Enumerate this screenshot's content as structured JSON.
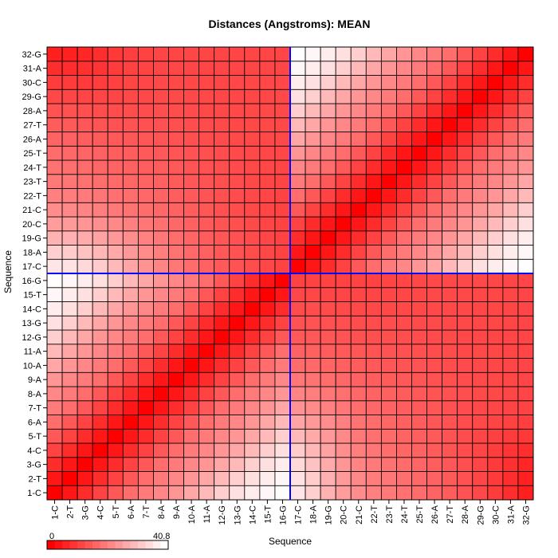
{
  "chart_data": {
    "type": "heatmap",
    "title": "Distances (Angstroms):  MEAN",
    "xlabel": "Sequence",
    "ylabel": "Sequence",
    "categories": [
      "1-C",
      "2-T",
      "3-G",
      "4-C",
      "5-T",
      "6-A",
      "7-T",
      "8-A",
      "9-A",
      "10-A",
      "11-A",
      "12-G",
      "13-G",
      "14-C",
      "15-T",
      "16-G",
      "17-C",
      "18-A",
      "19-G",
      "20-C",
      "21-C",
      "22-T",
      "23-T",
      "24-T",
      "25-T",
      "26-A",
      "27-T",
      "28-A",
      "29-G",
      "30-C",
      "31-A",
      "32-G"
    ],
    "value_range": [
      0,
      40.8
    ],
    "colorbar": {
      "min_label": "0",
      "max_label": "40.8",
      "low_color": "#ff0000",
      "high_color": "#ffffff"
    },
    "crosshair": {
      "x_after": "16-G",
      "y_after": "16-G",
      "color": "#0000ff"
    },
    "grid": true,
    "values": [
      [
        0.0,
        3.5,
        7.0,
        10.5,
        14.0,
        17.5,
        19.7,
        21.6,
        23.8,
        26.5,
        29.6,
        33.0,
        35.8,
        37.9,
        39.5,
        40.6,
        36.6,
        33.0,
        28.5,
        25.0,
        22.5,
        20.5,
        19.4,
        18.3,
        17.2,
        16.0,
        14.7,
        13.3,
        11.6,
        9.6,
        7.4,
        4.9
      ],
      [
        3.5,
        0.0,
        3.5,
        7.0,
        10.5,
        14.0,
        17.5,
        19.7,
        21.6,
        23.8,
        26.5,
        29.6,
        33.0,
        35.8,
        37.9,
        39.5,
        36.3,
        32.4,
        28.2,
        24.6,
        21.9,
        20.0,
        18.8,
        17.7,
        16.7,
        15.6,
        14.4,
        12.9,
        11.2,
        9.3,
        7.2,
        5.2
      ],
      [
        7.0,
        3.5,
        0.0,
        3.5,
        7.0,
        10.5,
        14.0,
        17.5,
        19.7,
        21.6,
        23.8,
        26.5,
        29.6,
        33.0,
        35.8,
        37.9,
        34.7,
        31.0,
        27.4,
        23.9,
        21.2,
        19.5,
        18.2,
        17.2,
        16.2,
        15.1,
        13.9,
        12.6,
        11.1,
        9.3,
        7.6,
        6.1
      ],
      [
        10.5,
        7.0,
        3.5,
        0.0,
        3.5,
        7.0,
        10.5,
        14.0,
        17.5,
        19.7,
        21.6,
        23.8,
        26.5,
        29.6,
        33.0,
        35.8,
        32.4,
        29.2,
        25.9,
        22.8,
        20.3,
        18.8,
        17.5,
        16.5,
        15.6,
        14.6,
        13.5,
        12.3,
        11.0,
        9.7,
        8.5,
        7.4
      ],
      [
        14.0,
        10.5,
        7.0,
        3.5,
        0.0,
        3.5,
        7.0,
        10.5,
        14.0,
        17.5,
        19.7,
        21.6,
        23.8,
        26.5,
        29.6,
        33.0,
        29.6,
        27.0,
        24.3,
        21.7,
        19.3,
        18.1,
        16.9,
        15.9,
        15.1,
        14.2,
        13.2,
        12.2,
        11.2,
        10.3,
        9.6,
        8.9
      ],
      [
        17.5,
        14.0,
        10.5,
        7.0,
        3.5,
        0.0,
        3.5,
        7.0,
        10.5,
        14.0,
        17.5,
        19.7,
        21.6,
        23.8,
        26.5,
        29.6,
        26.4,
        24.5,
        22.5,
        20.4,
        18.4,
        17.4,
        16.4,
        15.5,
        14.7,
        13.9,
        13.1,
        12.3,
        11.5,
        10.9,
        10.4,
        10.0
      ],
      [
        19.7,
        17.5,
        14.0,
        10.5,
        7.0,
        3.5,
        0.0,
        3.5,
        7.0,
        10.5,
        14.0,
        17.5,
        19.7,
        21.6,
        23.8,
        26.5,
        23.5,
        22.2,
        20.7,
        19.1,
        17.5,
        16.7,
        15.9,
        15.1,
        14.4,
        13.7,
        13.0,
        12.3,
        11.7,
        11.2,
        10.8,
        10.5
      ],
      [
        21.6,
        19.7,
        17.5,
        14.0,
        10.5,
        7.0,
        3.5,
        0.0,
        3.5,
        7.0,
        10.5,
        14.0,
        17.5,
        19.7,
        21.6,
        23.8,
        21.2,
        20.2,
        19.1,
        17.9,
        16.7,
        16.0,
        15.3,
        14.7,
        14.1,
        13.5,
        12.9,
        12.4,
        11.9,
        11.5,
        11.2,
        11.0
      ],
      [
        23.8,
        21.6,
        19.7,
        17.5,
        14.0,
        10.5,
        7.0,
        3.5,
        0.0,
        3.5,
        7.0,
        10.5,
        14.0,
        17.5,
        19.7,
        21.6,
        19.1,
        18.4,
        17.5,
        16.6,
        15.7,
        15.1,
        14.6,
        14.1,
        13.6,
        13.1,
        12.6,
        12.2,
        11.8,
        11.5,
        11.3,
        11.1
      ],
      [
        26.5,
        23.8,
        21.6,
        19.7,
        17.5,
        14.0,
        10.5,
        7.0,
        3.5,
        0.0,
        3.5,
        7.0,
        10.5,
        14.0,
        17.5,
        19.7,
        17.3,
        16.8,
        16.1,
        15.4,
        14.7,
        14.3,
        13.9,
        13.5,
        13.1,
        12.7,
        12.3,
        12.0,
        11.7,
        11.4,
        11.2,
        11.1
      ],
      [
        29.6,
        26.5,
        23.8,
        21.6,
        19.7,
        17.5,
        14.0,
        10.5,
        7.0,
        3.5,
        0.0,
        3.5,
        7.0,
        10.5,
        14.0,
        17.5,
        15.7,
        15.3,
        14.9,
        14.3,
        13.8,
        13.5,
        13.2,
        12.9,
        12.6,
        12.3,
        12.0,
        11.7,
        11.5,
        11.3,
        11.1,
        11.0
      ],
      [
        33.0,
        29.6,
        26.5,
        23.8,
        21.6,
        19.7,
        17.5,
        14.0,
        10.5,
        7.0,
        3.5,
        0.0,
        3.5,
        7.0,
        10.5,
        14.0,
        14.3,
        14.1,
        13.8,
        13.4,
        13.0,
        12.8,
        12.6,
        12.4,
        12.2,
        12.0,
        11.8,
        11.6,
        11.4,
        11.2,
        11.1,
        11.0
      ],
      [
        35.8,
        33.0,
        29.6,
        26.5,
        23.8,
        21.6,
        19.7,
        17.5,
        14.0,
        10.5,
        7.0,
        3.5,
        0.0,
        3.5,
        7.0,
        10.5,
        13.2,
        13.1,
        12.9,
        12.6,
        12.3,
        12.2,
        12.1,
        12.0,
        11.9,
        11.8,
        11.7,
        11.6,
        11.4,
        11.3,
        11.2,
        11.1
      ],
      [
        37.9,
        35.8,
        33.0,
        29.6,
        26.5,
        23.8,
        21.6,
        19.7,
        17.5,
        14.0,
        10.5,
        7.0,
        3.5,
        0.0,
        3.5,
        7.0,
        12.2,
        12.1,
        12.0,
        11.8,
        11.6,
        11.6,
        11.6,
        11.6,
        11.6,
        11.6,
        11.6,
        11.5,
        11.4,
        11.3,
        11.2,
        11.1
      ],
      [
        39.5,
        37.9,
        35.8,
        33.0,
        29.6,
        26.5,
        23.8,
        21.6,
        19.7,
        17.5,
        14.0,
        10.5,
        7.0,
        3.5,
        0.0,
        3.5,
        11.4,
        11.3,
        11.2,
        11.1,
        11.0,
        11.1,
        11.2,
        11.3,
        11.4,
        11.5,
        11.5,
        11.5,
        11.4,
        11.3,
        11.2,
        11.1
      ],
      [
        40.6,
        39.5,
        37.9,
        35.8,
        33.0,
        29.6,
        26.5,
        23.8,
        21.6,
        19.7,
        17.5,
        14.0,
        10.5,
        7.0,
        3.5,
        0.0,
        10.7,
        10.6,
        10.5,
        10.5,
        10.5,
        10.7,
        10.9,
        11.1,
        11.3,
        11.5,
        11.6,
        11.6,
        11.5,
        11.4,
        11.2,
        11.1
      ],
      [
        36.6,
        36.3,
        34.7,
        32.4,
        29.6,
        26.4,
        23.5,
        21.2,
        19.1,
        17.3,
        15.7,
        14.3,
        13.2,
        12.2,
        11.4,
        10.7,
        0.0,
        3.5,
        7.0,
        10.5,
        14.0,
        17.5,
        19.7,
        21.6,
        23.8,
        26.5,
        29.6,
        33.0,
        35.8,
        37.9,
        39.5,
        40.6
      ],
      [
        33.0,
        32.4,
        31.0,
        29.2,
        27.0,
        24.5,
        22.2,
        20.2,
        18.4,
        16.8,
        15.3,
        14.1,
        13.1,
        12.1,
        11.3,
        10.6,
        3.5,
        0.0,
        3.5,
        7.0,
        10.5,
        14.0,
        17.5,
        19.7,
        21.6,
        23.8,
        26.5,
        29.6,
        33.0,
        35.8,
        37.9,
        39.5
      ],
      [
        28.5,
        28.2,
        27.4,
        25.9,
        24.3,
        22.5,
        20.7,
        19.1,
        17.5,
        16.1,
        14.9,
        13.8,
        12.9,
        12.0,
        11.2,
        10.5,
        7.0,
        3.5,
        0.0,
        3.5,
        7.0,
        10.5,
        14.0,
        17.5,
        19.7,
        21.6,
        23.8,
        26.5,
        29.6,
        33.0,
        35.8,
        37.9
      ],
      [
        25.0,
        24.6,
        23.9,
        22.8,
        21.7,
        20.4,
        19.1,
        17.9,
        16.6,
        15.4,
        14.3,
        13.4,
        12.6,
        11.8,
        11.1,
        10.5,
        10.5,
        7.0,
        3.5,
        0.0,
        3.5,
        7.0,
        10.5,
        14.0,
        17.5,
        19.7,
        21.6,
        23.8,
        26.5,
        29.6,
        33.0,
        35.8
      ],
      [
        22.5,
        21.9,
        21.2,
        20.3,
        19.3,
        18.4,
        17.5,
        16.7,
        15.7,
        14.7,
        13.8,
        13.0,
        12.3,
        11.6,
        11.0,
        10.5,
        14.0,
        10.5,
        7.0,
        3.5,
        0.0,
        3.5,
        7.0,
        10.5,
        14.0,
        17.5,
        19.7,
        21.6,
        23.8,
        26.5,
        29.6,
        33.0
      ],
      [
        20.5,
        20.0,
        19.5,
        18.8,
        18.1,
        17.4,
        16.7,
        16.0,
        15.1,
        14.3,
        13.5,
        12.8,
        12.2,
        11.6,
        11.1,
        10.7,
        17.5,
        14.0,
        10.5,
        7.0,
        3.5,
        0.0,
        3.5,
        7.0,
        10.5,
        14.0,
        17.5,
        19.7,
        21.6,
        23.8,
        26.5,
        29.6
      ],
      [
        19.4,
        18.8,
        18.2,
        17.5,
        16.9,
        16.4,
        15.9,
        15.3,
        14.6,
        13.9,
        13.2,
        12.6,
        12.1,
        11.6,
        11.2,
        10.9,
        19.7,
        17.5,
        14.0,
        10.5,
        7.0,
        3.5,
        0.0,
        3.5,
        7.0,
        10.5,
        14.0,
        17.5,
        19.7,
        21.6,
        23.8,
        26.5
      ],
      [
        18.3,
        17.7,
        17.2,
        16.5,
        15.9,
        15.5,
        15.1,
        14.7,
        14.1,
        13.5,
        12.9,
        12.4,
        12.0,
        11.6,
        11.3,
        11.1,
        21.6,
        19.7,
        17.5,
        14.0,
        10.5,
        7.0,
        3.5,
        0.0,
        3.5,
        7.0,
        10.5,
        14.0,
        17.5,
        19.7,
        21.6,
        23.8
      ],
      [
        17.2,
        16.7,
        16.2,
        15.6,
        15.1,
        14.7,
        14.4,
        14.1,
        13.6,
        13.1,
        12.6,
        12.2,
        11.9,
        11.6,
        11.4,
        11.3,
        23.8,
        21.6,
        19.7,
        17.5,
        14.0,
        10.5,
        7.0,
        3.5,
        0.0,
        3.5,
        7.0,
        10.5,
        14.0,
        17.5,
        19.7,
        21.6
      ],
      [
        16.0,
        15.6,
        15.1,
        14.6,
        14.2,
        13.9,
        13.7,
        13.5,
        13.1,
        12.7,
        12.3,
        12.0,
        11.8,
        11.6,
        11.5,
        11.5,
        26.5,
        23.8,
        21.6,
        19.7,
        17.5,
        14.0,
        10.5,
        7.0,
        3.5,
        0.0,
        3.5,
        7.0,
        10.5,
        14.0,
        17.5,
        19.7
      ],
      [
        14.7,
        14.4,
        13.9,
        13.5,
        13.2,
        13.1,
        13.0,
        12.9,
        12.6,
        12.3,
        12.0,
        11.8,
        11.7,
        11.6,
        11.5,
        11.6,
        29.6,
        26.5,
        23.8,
        21.6,
        19.7,
        17.5,
        14.0,
        10.5,
        7.0,
        3.5,
        0.0,
        3.5,
        7.0,
        10.5,
        14.0,
        17.5
      ],
      [
        13.3,
        12.9,
        12.6,
        12.3,
        12.2,
        12.3,
        12.3,
        12.4,
        12.2,
        12.0,
        11.7,
        11.6,
        11.6,
        11.5,
        11.5,
        11.6,
        33.0,
        29.6,
        26.5,
        23.8,
        21.6,
        19.7,
        17.5,
        14.0,
        10.5,
        7.0,
        3.5,
        0.0,
        3.5,
        7.0,
        10.5,
        14.0
      ],
      [
        11.6,
        11.2,
        11.1,
        11.0,
        11.2,
        11.5,
        11.7,
        11.9,
        11.8,
        11.7,
        11.5,
        11.4,
        11.4,
        11.4,
        11.4,
        11.5,
        35.8,
        33.0,
        29.6,
        26.5,
        23.8,
        21.6,
        19.7,
        17.5,
        14.0,
        10.5,
        7.0,
        3.5,
        0.0,
        3.5,
        7.0,
        10.5
      ],
      [
        9.6,
        9.3,
        9.3,
        9.7,
        10.3,
        10.9,
        11.2,
        11.5,
        11.5,
        11.4,
        11.3,
        11.2,
        11.3,
        11.3,
        11.3,
        11.4,
        37.9,
        35.8,
        33.0,
        29.6,
        26.5,
        23.8,
        21.6,
        19.7,
        17.5,
        14.0,
        10.5,
        7.0,
        3.5,
        0.0,
        3.5,
        7.0
      ],
      [
        7.4,
        7.2,
        7.6,
        8.5,
        9.6,
        10.4,
        10.8,
        11.2,
        11.3,
        11.2,
        11.1,
        11.1,
        11.2,
        11.2,
        11.2,
        11.2,
        39.5,
        37.9,
        35.8,
        33.0,
        29.6,
        26.5,
        23.8,
        21.6,
        19.7,
        17.5,
        14.0,
        10.5,
        7.0,
        3.5,
        0.0,
        3.5
      ],
      [
        4.9,
        5.2,
        6.1,
        7.4,
        8.9,
        10.0,
        10.5,
        11.0,
        11.1,
        11.1,
        11.0,
        11.0,
        11.1,
        11.1,
        11.1,
        11.1,
        40.6,
        39.5,
        37.9,
        35.8,
        33.0,
        29.6,
        26.5,
        23.8,
        21.6,
        19.7,
        17.5,
        14.0,
        10.5,
        7.0,
        3.5,
        0.0
      ]
    ]
  }
}
